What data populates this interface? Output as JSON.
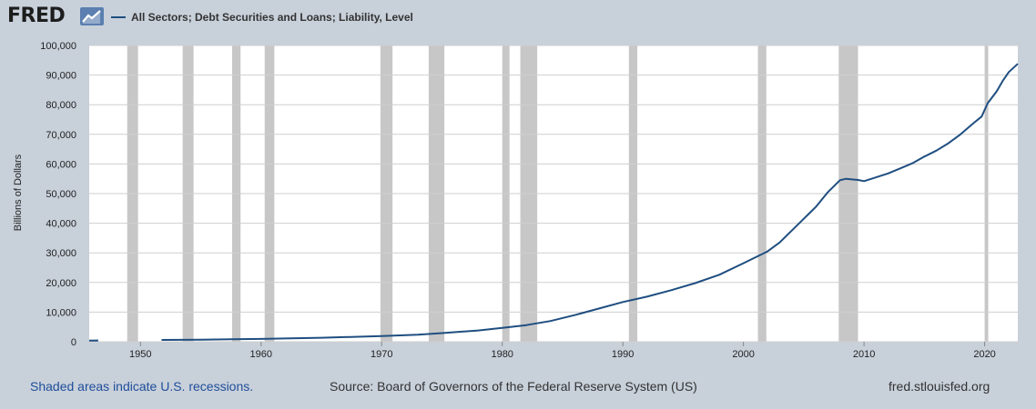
{
  "header": {
    "logo_text": "FRED",
    "logo_icon": "line-chart-icon",
    "series_title": "All Sectors; Debt Securities and Loans; Liability, Level"
  },
  "colors": {
    "line": "#1f4e80",
    "recession": "#c7c7c7",
    "grid": "#cfcfcf",
    "plot_bg": "#ffffff",
    "page_bg": "#c8d0da"
  },
  "footer": {
    "recession_note": "Shaded areas indicate U.S. recessions.",
    "source": "Source: Board of Governors of the Federal Reserve System (US)",
    "site": "fred.stlouisfed.org"
  },
  "chart_data": {
    "type": "line",
    "title": "All Sectors; Debt Securities and Loans; Liability, Level",
    "ylabel": "Billions of Dollars",
    "xlabel": "",
    "xlim": [
      1945.75,
      2022.75
    ],
    "ylim": [
      0,
      100000
    ],
    "x_ticks": [
      1950,
      1960,
      1970,
      1980,
      1990,
      2000,
      2010,
      2020
    ],
    "y_ticks": [
      0,
      10000,
      20000,
      30000,
      40000,
      50000,
      60000,
      70000,
      80000,
      90000,
      100000
    ],
    "y_tick_labels": [
      "0",
      "10,000",
      "20,000",
      "30,000",
      "40,000",
      "50,000",
      "60,000",
      "70,000",
      "80,000",
      "90,000",
      "100,000"
    ],
    "grid": true,
    "recessions": [
      [
        1948.9,
        1949.8
      ],
      [
        1953.5,
        1954.4
      ],
      [
        1957.6,
        1958.3
      ],
      [
        1960.3,
        1961.1
      ],
      [
        1969.9,
        1970.9
      ],
      [
        1973.9,
        1975.2
      ],
      [
        1980.0,
        1980.6
      ],
      [
        1981.5,
        1982.9
      ],
      [
        1990.5,
        1991.2
      ],
      [
        2001.2,
        2001.9
      ],
      [
        2007.9,
        2009.5
      ],
      [
        2020.0,
        2020.3
      ]
    ],
    "series": [
      {
        "name": "All Sectors; Debt Securities and Loans; Liability, Level",
        "segments": [
          [
            [
              1945.75,
              400
            ],
            [
              1946.5,
              420
            ]
          ],
          [
            [
              1951.75,
              600
            ],
            [
              1955,
              700
            ],
            [
              1960,
              950
            ],
            [
              1965,
              1350
            ],
            [
              1970,
              1900
            ],
            [
              1973,
              2400
            ],
            [
              1975,
              2900
            ],
            [
              1978,
              3800
            ],
            [
              1980,
              4700
            ],
            [
              1982,
              5600
            ],
            [
              1984,
              7000
            ],
            [
              1986,
              9000
            ],
            [
              1988,
              11200
            ],
            [
              1990,
              13400
            ],
            [
              1992,
              15200
            ],
            [
              1994,
              17400
            ],
            [
              1996,
              19800
            ],
            [
              1998,
              22600
            ],
            [
              2000,
              26500
            ],
            [
              2002,
              30500
            ],
            [
              2003,
              33500
            ],
            [
              2004,
              37500
            ],
            [
              2005,
              41500
            ],
            [
              2006,
              45500
            ],
            [
              2007,
              50500
            ],
            [
              2008,
              54500
            ],
            [
              2008.5,
              55000
            ],
            [
              2009.5,
              54600
            ],
            [
              2010,
              54200
            ],
            [
              2011,
              55500
            ],
            [
              2012,
              56800
            ],
            [
              2013,
              58500
            ],
            [
              2014,
              60200
            ],
            [
              2015,
              62500
            ],
            [
              2016,
              64500
            ],
            [
              2017,
              67000
            ],
            [
              2018,
              70000
            ],
            [
              2019,
              73500
            ],
            [
              2019.75,
              76000
            ],
            [
              2020.25,
              80500
            ],
            [
              2021,
              84500
            ],
            [
              2021.5,
              88000
            ],
            [
              2022,
              91000
            ],
            [
              2022.75,
              93800
            ]
          ]
        ]
      }
    ]
  }
}
